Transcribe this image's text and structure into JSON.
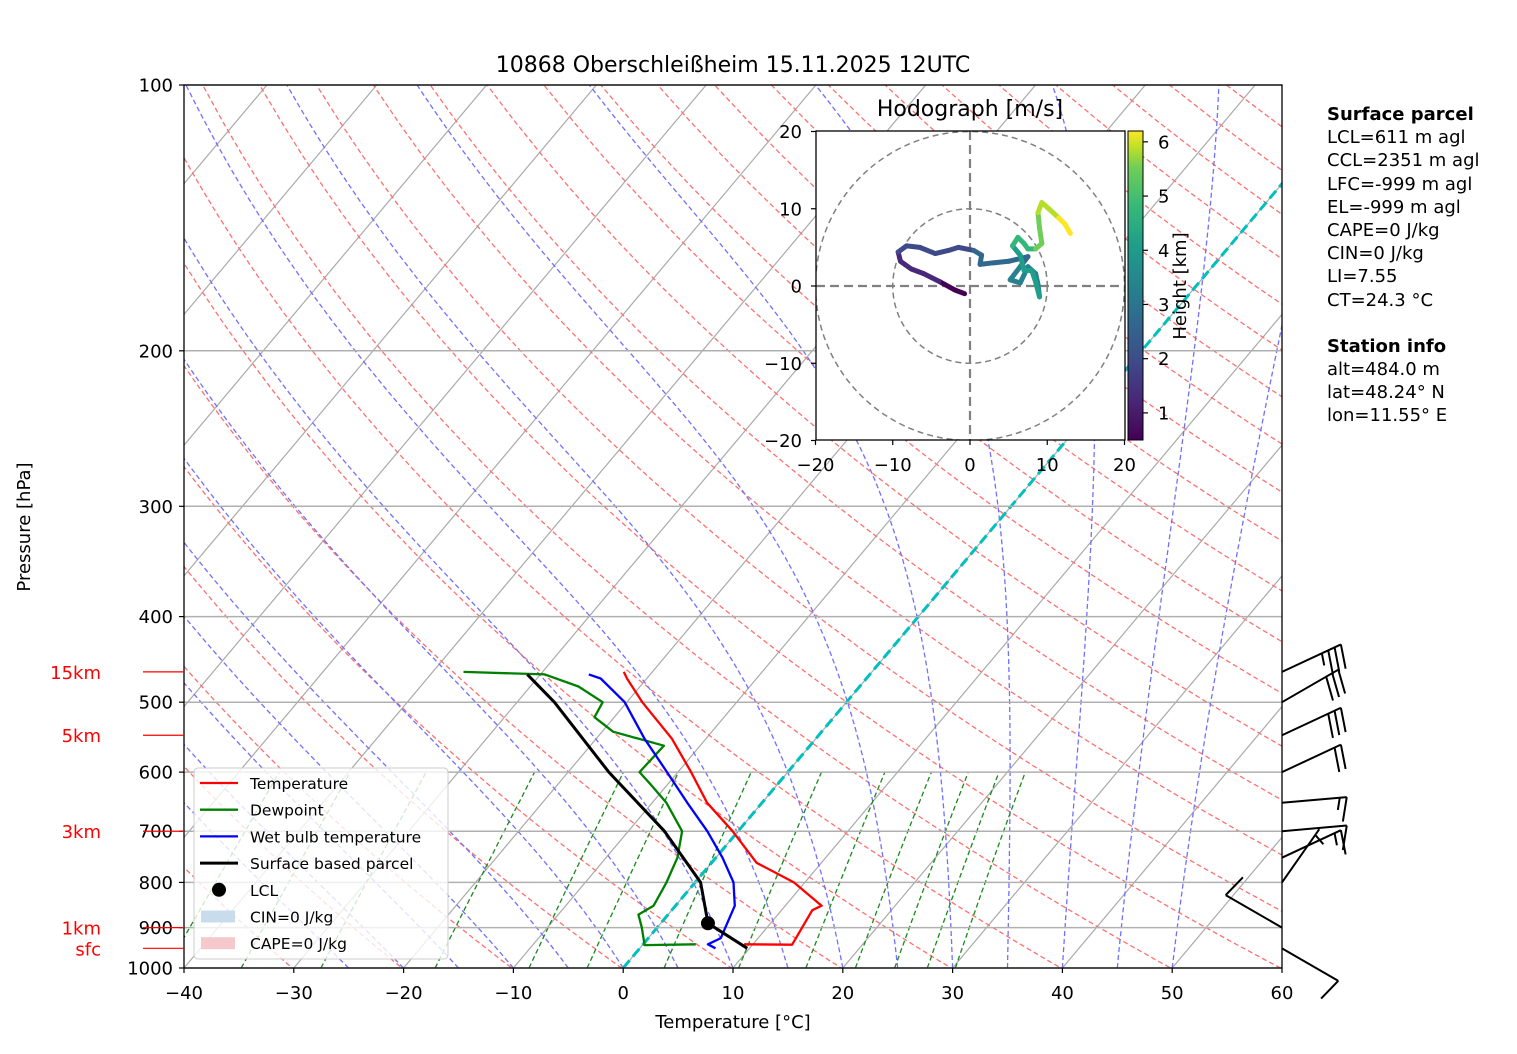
{
  "chart_data": {
    "type": "line",
    "title": "10868 Oberschleißheim 15.11.2025 12UTC",
    "xlabel": "Temperature [°C]",
    "ylabel": "Pressure [hPa]",
    "xlim": [
      -40,
      60
    ],
    "ylim": [
      1000,
      100
    ],
    "yscale": "log",
    "x_ticks": [
      "−40",
      "−30",
      "−20",
      "−10",
      "0",
      "10",
      "20",
      "30",
      "40",
      "50",
      "60"
    ],
    "x_tick_values": [
      -40,
      -30,
      -20,
      -10,
      0,
      10,
      20,
      30,
      40,
      50,
      60
    ],
    "y_ticks": [
      "100",
      "200",
      "300",
      "400",
      "500",
      "600",
      "700",
      "800",
      "900",
      "1000"
    ],
    "y_tick_values": [
      100,
      200,
      300,
      400,
      500,
      600,
      700,
      800,
      900,
      1000
    ],
    "grid": true,
    "height_markers": [
      {
        "label": "15km",
        "pressure": 462
      },
      {
        "label": "5km",
        "pressure": 545
      },
      {
        "label": "3km",
        "pressure": 700
      },
      {
        "label": "1km",
        "pressure": 900
      },
      {
        "label": "sfc",
        "pressure": 950
      }
    ],
    "series": [
      {
        "name": "Temperature",
        "color": "#ff0000",
        "points": [
          [
            940,
            9.2
          ],
          [
            941,
            13.6
          ],
          [
            860,
            12.8
          ],
          [
            850,
            13.3
          ],
          [
            800,
            9.0
          ],
          [
            760,
            4.1
          ],
          [
            700,
            -0.5
          ],
          [
            650,
            -5.0
          ],
          [
            600,
            -8.8
          ],
          [
            550,
            -13.1
          ],
          [
            500,
            -18.6
          ],
          [
            470,
            -21.8
          ],
          [
            462,
            -22.6
          ]
        ]
      },
      {
        "name": "Dewpoint",
        "color": "#008000",
        "points": [
          [
            940,
            4.8
          ],
          [
            942,
            0.2
          ],
          [
            900,
            -1.4
          ],
          [
            870,
            -2.7
          ],
          [
            850,
            -2.0
          ],
          [
            800,
            -2.6
          ],
          [
            750,
            -3.5
          ],
          [
            700,
            -5.1
          ],
          [
            650,
            -8.7
          ],
          [
            620,
            -11.5
          ],
          [
            600,
            -13.5
          ],
          [
            560,
            -13.3
          ],
          [
            540,
            -19.0
          ],
          [
            520,
            -21.8
          ],
          [
            500,
            -22.2
          ],
          [
            480,
            -25.6
          ],
          [
            465,
            -29.6
          ],
          [
            462,
            -37.2
          ]
        ]
      },
      {
        "name": "Wet bulb temperature",
        "color": "#0000ff",
        "points": [
          [
            950,
            6.9
          ],
          [
            940,
            5.9
          ],
          [
            925,
            6.6
          ],
          [
            850,
            5.4
          ],
          [
            800,
            3.5
          ],
          [
            750,
            0.6
          ],
          [
            700,
            -2.8
          ],
          [
            650,
            -6.8
          ],
          [
            600,
            -11.0
          ],
          [
            550,
            -15.6
          ],
          [
            500,
            -20.2
          ],
          [
            470,
            -24.2
          ],
          [
            465,
            -25.6
          ]
        ]
      },
      {
        "name": "Surface based parcel",
        "color": "#000000",
        "points": [
          [
            950,
            9.8
          ],
          [
            890,
            4.3
          ],
          [
            800,
            0.5
          ],
          [
            700,
            -6.7
          ],
          [
            600,
            -16.3
          ],
          [
            500,
            -26.6
          ],
          [
            465,
            -31.2
          ]
        ]
      }
    ],
    "lcl": {
      "name": "LCL",
      "pressure": 890,
      "temperature": 4.3
    },
    "zero_isotherm": {
      "color": "#00bfbf",
      "temperature": 0
    },
    "legend": {
      "placement": "lower-left",
      "entries": [
        "Temperature",
        "Dewpoint",
        "Wet bulb temperature",
        "Surface based parcel",
        "LCL",
        "CIN=0 J/kg",
        "CAPE=0 J/kg"
      ]
    },
    "wind_barbs": [
      {
        "pressure": 462,
        "speed_kt": 35,
        "direction_deg": 245
      },
      {
        "pressure": 500,
        "speed_kt": 30,
        "direction_deg": 240
      },
      {
        "pressure": 545,
        "speed_kt": 30,
        "direction_deg": 245
      },
      {
        "pressure": 600,
        "speed_kt": 20,
        "direction_deg": 245
      },
      {
        "pressure": 650,
        "speed_kt": 15,
        "direction_deg": 265
      },
      {
        "pressure": 700,
        "speed_kt": 10,
        "direction_deg": 265
      },
      {
        "pressure": 750,
        "speed_kt": 15,
        "direction_deg": 245
      },
      {
        "pressure": 800,
        "speed_kt": 5,
        "direction_deg": 215
      },
      {
        "pressure": 900,
        "speed_kt": 10,
        "direction_deg": 120
      },
      {
        "pressure": 950,
        "speed_kt": 10,
        "direction_deg": 300
      }
    ],
    "hodograph": {
      "title": "Hodograph [m/s]",
      "xlim": [
        -20,
        20
      ],
      "ylim": [
        -20,
        20
      ],
      "ticks": [
        "−20",
        "−10",
        "0",
        "10",
        "20"
      ],
      "tick_values": [
        -20,
        -10,
        0,
        10,
        20
      ],
      "rings": [
        10,
        20
      ],
      "colorbar_label": "Height [km]",
      "colorbar_ticks": [
        "1",
        "2",
        "3",
        "4",
        "5",
        "6"
      ],
      "colorbar_tick_values": [
        1,
        2,
        3,
        4,
        5,
        6
      ],
      "colorbar_range": [
        0.5,
        6.2
      ],
      "points": [
        [
          -0.7,
          -1.0,
          0.5
        ],
        [
          -2,
          -0.5,
          0.7
        ],
        [
          -4,
          0.6,
          0.9
        ],
        [
          -6,
          1.6,
          1.05
        ],
        [
          -7.6,
          2.2,
          1.2
        ],
        [
          -9,
          3.2,
          1.35
        ],
        [
          -9.3,
          4.4,
          1.45
        ],
        [
          -8.2,
          5.2,
          1.55
        ],
        [
          -6.5,
          5.0,
          1.7
        ],
        [
          -4.5,
          4.2,
          1.85
        ],
        [
          -2.8,
          4.6,
          1.95
        ],
        [
          -1.5,
          5.0,
          2.0
        ],
        [
          0.5,
          4.6,
          2.1
        ],
        [
          1.5,
          4.0,
          2.15
        ],
        [
          1.3,
          2.8,
          2.2
        ],
        [
          3,
          3.0,
          2.3
        ],
        [
          5,
          3.2,
          2.45
        ],
        [
          7.5,
          3.8,
          2.6
        ],
        [
          6.5,
          2.5,
          2.75
        ],
        [
          5.2,
          0.8,
          2.9
        ],
        [
          6.5,
          0.4,
          3.0
        ],
        [
          7.5,
          2.5,
          3.1
        ],
        [
          8.5,
          1.6,
          3.2
        ],
        [
          8.8,
          0.2,
          3.3
        ],
        [
          9.0,
          -1.4,
          3.4
        ],
        [
          8.5,
          0.5,
          3.5
        ],
        [
          8,
          2.0,
          3.6
        ],
        [
          7,
          2.0,
          3.7
        ],
        [
          6.5,
          4.0,
          3.85
        ],
        [
          5.5,
          5.2,
          4.0
        ],
        [
          6.2,
          6.3,
          4.15
        ],
        [
          7.0,
          5.5,
          4.3
        ],
        [
          7.5,
          4.8,
          4.45
        ],
        [
          8.5,
          4.8,
          4.6
        ],
        [
          9.3,
          5.5,
          4.75
        ],
        [
          9.0,
          7.5,
          4.95
        ],
        [
          8.8,
          9.5,
          5.2
        ],
        [
          9.3,
          10.8,
          5.45
        ],
        [
          10.2,
          10.0,
          5.65
        ],
        [
          11.5,
          8.8,
          5.85
        ],
        [
          12.3,
          8.0,
          6.0
        ],
        [
          13.0,
          6.8,
          6.2
        ]
      ]
    }
  },
  "info_panel": {
    "surface_title": "Surface parcel",
    "surface_lines": [
      "LCL=611 m agl",
      "CCL=2351 m agl",
      "LFC=-999 m agl",
      "EL=-999 m agl",
      "CAPE=0 J/kg",
      "CIN=0 J/kg",
      "LI=7.55",
      "CT=24.3 °C"
    ],
    "station_title": "Station info",
    "station_lines": [
      "alt=484.0 m",
      "lat=48.24° N",
      "lon=11.55° E"
    ]
  },
  "colors": {
    "dry_adiabat": "#ff7070",
    "moist_adiabat": "#7070ff",
    "mixing_ratio": "#1a8a1a",
    "isotherm": "#aaaaaa",
    "cin_fill": "#c8dcec",
    "cape_fill": "#f5c8cc"
  }
}
